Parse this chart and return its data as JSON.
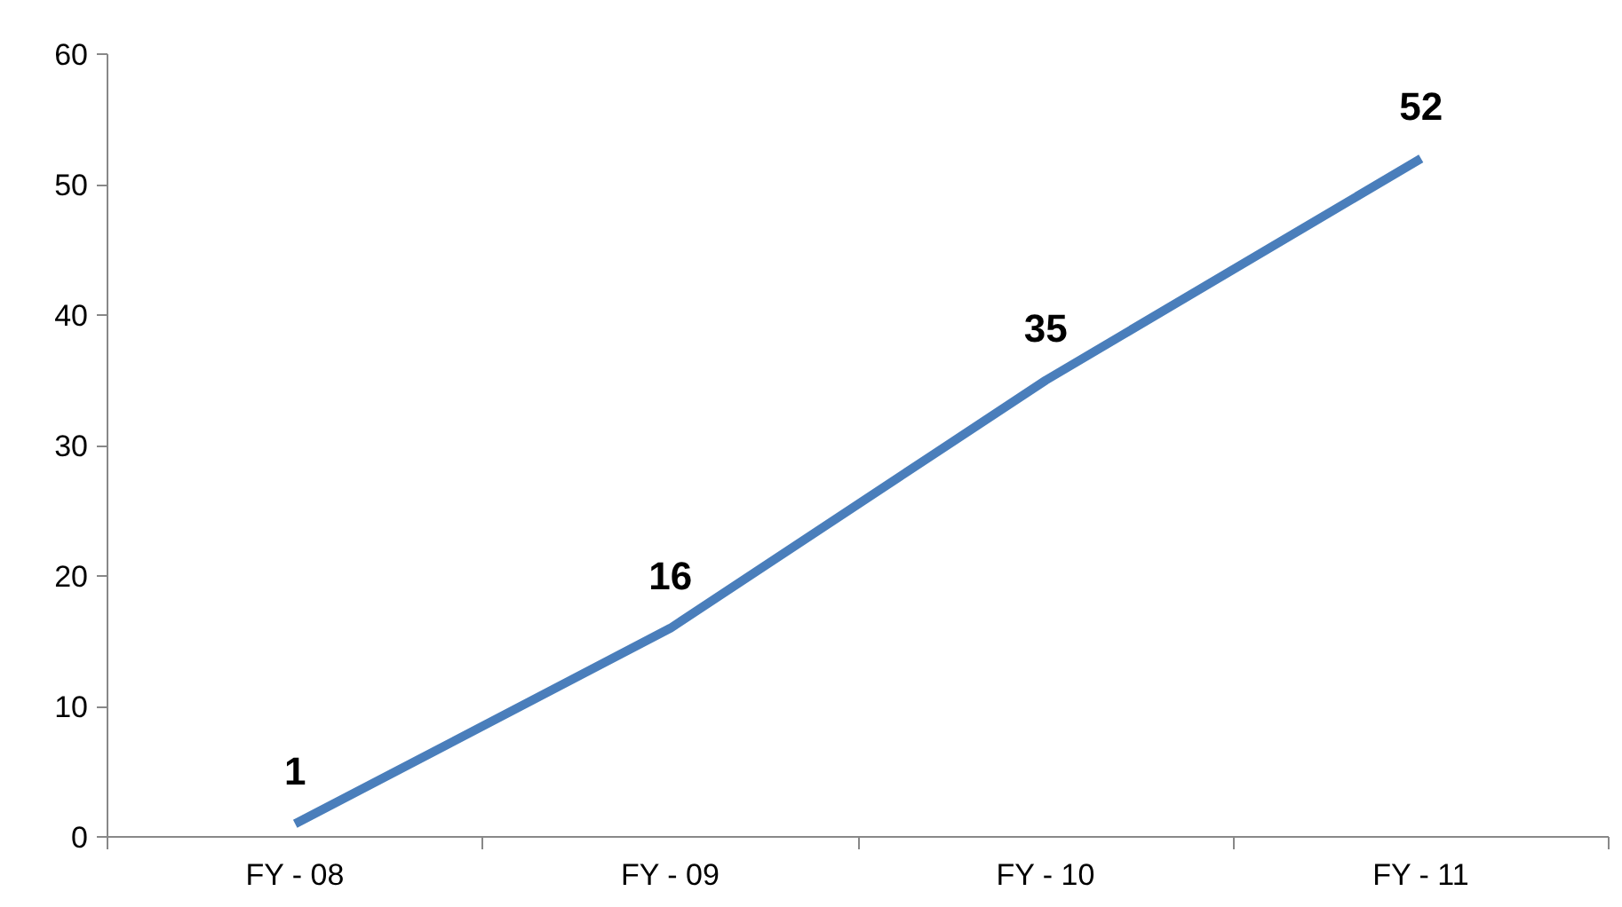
{
  "chart_data": {
    "type": "line",
    "categories": [
      "FY - 08",
      "FY - 09",
      "FY - 10",
      "FY - 11"
    ],
    "series": [
      {
        "color": "#4a7ebb",
        "values": [
          1,
          16,
          35,
          52
        ]
      }
    ],
    "ylim": [
      0,
      60
    ],
    "yticks": [
      0,
      10,
      20,
      30,
      40,
      50,
      60
    ],
    "data_labels": true,
    "grid": false,
    "marker": "none",
    "line_style": "solid"
  }
}
